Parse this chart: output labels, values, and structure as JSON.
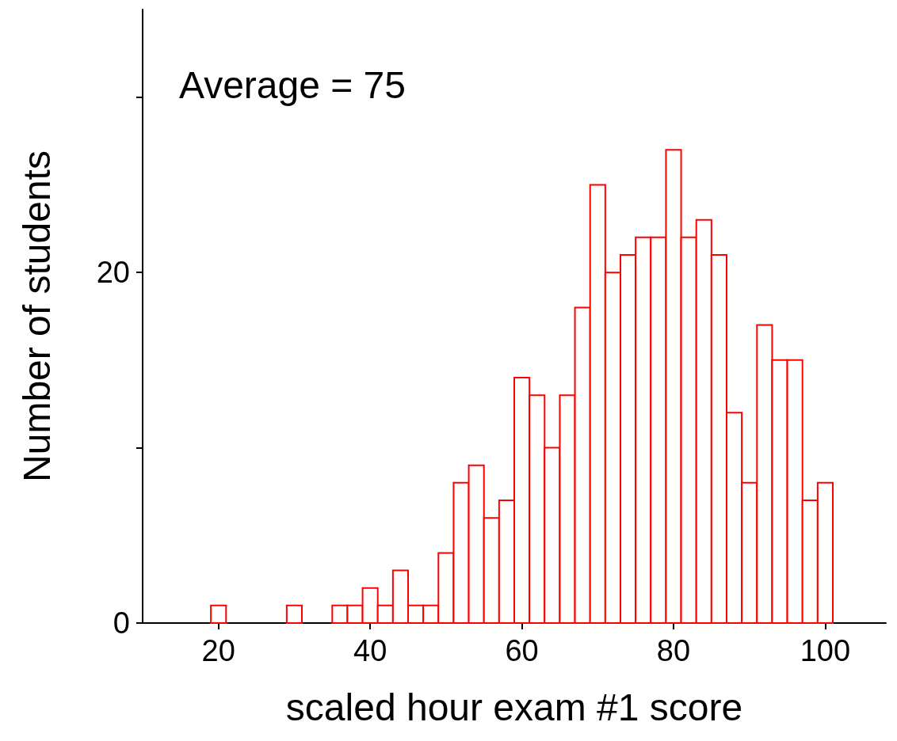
{
  "chart_data": {
    "type": "histogram",
    "xlabel": "scaled hour exam #1 score",
    "ylabel": "Number of students",
    "annotations": [
      "Average = 75"
    ],
    "bins": [
      19,
      21,
      23,
      25,
      27,
      29,
      31,
      33,
      35,
      37,
      39,
      41,
      43,
      45,
      47,
      49,
      51,
      53,
      55,
      57,
      59,
      61,
      63,
      65,
      67,
      69,
      71,
      73,
      75,
      77,
      79,
      81,
      83,
      85,
      87,
      89,
      91,
      93,
      95,
      97,
      99,
      101
    ],
    "values": [
      1,
      0,
      0,
      0,
      0,
      1,
      0,
      0,
      1,
      1,
      2,
      1,
      3,
      1,
      1,
      4,
      8,
      9,
      6,
      7,
      14,
      13,
      10,
      13,
      18,
      25,
      20,
      21,
      22,
      22,
      27,
      22,
      23,
      21,
      12,
      8,
      17,
      15,
      15,
      7,
      8
    ],
    "color": "#ff0000",
    "xlim": [
      10,
      108
    ],
    "xticks": [
      20,
      40,
      60,
      80,
      100
    ],
    "ylim": [
      0,
      35
    ],
    "yticks": [
      0,
      {
        "value": 10,
        "label": null
      },
      20,
      {
        "value": 30,
        "label": null
      }
    ],
    "grid": false
  }
}
